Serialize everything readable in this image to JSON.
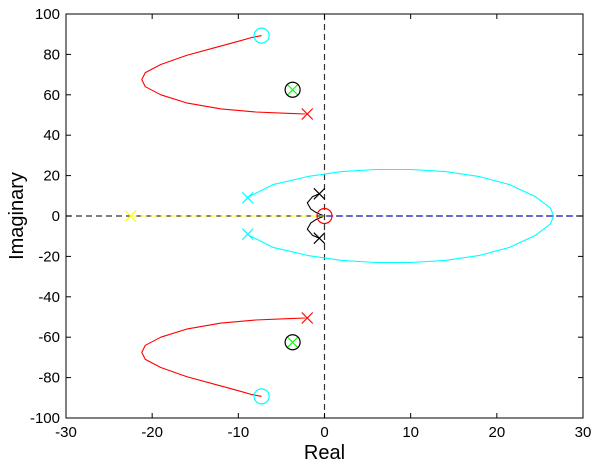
{
  "chart_data": {
    "type": "scatter",
    "title": "",
    "xlabel": "Real",
    "ylabel": "Imaginary",
    "xlim": [
      -30,
      30
    ],
    "ylim": [
      -100,
      100
    ],
    "xticks": [
      -30,
      -20,
      -10,
      0,
      10,
      20,
      30
    ],
    "yticks": [
      -100,
      -80,
      -60,
      -40,
      -20,
      0,
      20,
      40,
      60,
      80,
      100
    ],
    "grid": false,
    "legend": "none",
    "reference_lines": {
      "x0": true,
      "y0": true,
      "color": "#333333",
      "style": "dashed"
    },
    "series": [
      {
        "color": "#ff0000",
        "kind": "locus",
        "x": [
          -2.2,
          -4,
          -8,
          -12,
          -16,
          -19,
          -20.8,
          -21.2,
          -20.8,
          -19,
          -16,
          -13,
          -10,
          -8.5,
          -7.3
        ],
        "y": [
          50.5,
          50.8,
          51.5,
          53,
          56,
          60,
          64,
          67.5,
          71,
          75,
          79.5,
          83,
          86.5,
          88.3,
          89.3
        ]
      },
      {
        "color": "#ff0000",
        "kind": "locus",
        "x": [
          -2.2,
          -4,
          -8,
          -12,
          -16,
          -19,
          -20.8,
          -21.2,
          -20.8,
          -19,
          -16,
          -13,
          -10,
          -8.5,
          -7.3
        ],
        "y": [
          -50.5,
          -50.8,
          -51.5,
          -53,
          -56,
          -60,
          -64,
          -67.5,
          -71,
          -75,
          -79.5,
          -83,
          -86.5,
          -88.3,
          -89.3
        ]
      },
      {
        "color": "#00ffff",
        "kind": "locus",
        "x": [
          -9,
          -6,
          -2,
          2,
          6,
          10,
          14,
          18,
          21.5,
          24.5,
          26.2,
          26.6,
          26.2,
          24.5,
          21.5,
          18,
          14,
          10,
          6,
          2,
          -2,
          -6,
          -9
        ],
        "y": [
          9,
          15.5,
          19.5,
          22,
          23,
          23,
          22,
          19.5,
          15.5,
          9.5,
          4,
          0,
          -4,
          -9.5,
          -15.5,
          -19.5,
          -22,
          -23,
          -23,
          -22,
          -19.5,
          -15.5,
          -9
        ]
      },
      {
        "color": "#000000",
        "kind": "locus",
        "x": [
          -0.6,
          -1.4,
          -2.0,
          -1.6,
          -1.0,
          -0.5,
          -0.1
        ],
        "y": [
          11,
          9.5,
          6.5,
          3.5,
          1.8,
          0.8,
          0.2
        ]
      },
      {
        "color": "#000000",
        "kind": "locus",
        "x": [
          -0.6,
          -1.4,
          -2.0,
          -1.6,
          -1.0,
          -0.5,
          -0.1
        ],
        "y": [
          -11,
          -9.5,
          -6.5,
          -3.5,
          -1.8,
          -0.8,
          -0.2
        ]
      },
      {
        "color": "#ffff00",
        "kind": "locus",
        "style": "dashed",
        "x": [
          -22.5,
          -0.1
        ],
        "y": [
          0,
          0
        ]
      },
      {
        "color": "#0000ff",
        "kind": "locus",
        "style": "dashed",
        "x": [
          0.3,
          30
        ],
        "y": [
          0,
          0
        ]
      },
      {
        "color": "#ff0000",
        "kind": "poles",
        "marker": "x",
        "x": [
          -2,
          -2
        ],
        "y": [
          50.5,
          -50.5
        ]
      },
      {
        "color": "#00ffff",
        "kind": "zeros",
        "marker": "o",
        "x": [
          -7.3,
          -7.3
        ],
        "y": [
          89.3,
          -89.3
        ]
      },
      {
        "color": "#00ffff",
        "kind": "poles",
        "marker": "x",
        "x": [
          -8.9,
          -8.9
        ],
        "y": [
          9,
          -9
        ]
      },
      {
        "color": "#000000",
        "kind": "poles",
        "marker": "x",
        "x": [
          -0.6,
          -0.6
        ],
        "y": [
          11,
          -11
        ]
      },
      {
        "color": "#ff0000",
        "kind": "zeros",
        "marker": "o",
        "x": [
          0
        ],
        "y": [
          0
        ]
      },
      {
        "color": "#ffff00",
        "kind": "poles",
        "marker": "x",
        "x": [
          -22.5
        ],
        "y": [
          0
        ]
      },
      {
        "color": "#00ff00",
        "kind": "poles",
        "marker": "x",
        "x": [
          -3.7,
          -3.7
        ],
        "y": [
          62.5,
          -62.5
        ]
      },
      {
        "color": "#000000",
        "kind": "zeros",
        "marker": "o",
        "x": [
          -3.7,
          -3.7
        ],
        "y": [
          62.5,
          -62.5
        ]
      }
    ]
  }
}
